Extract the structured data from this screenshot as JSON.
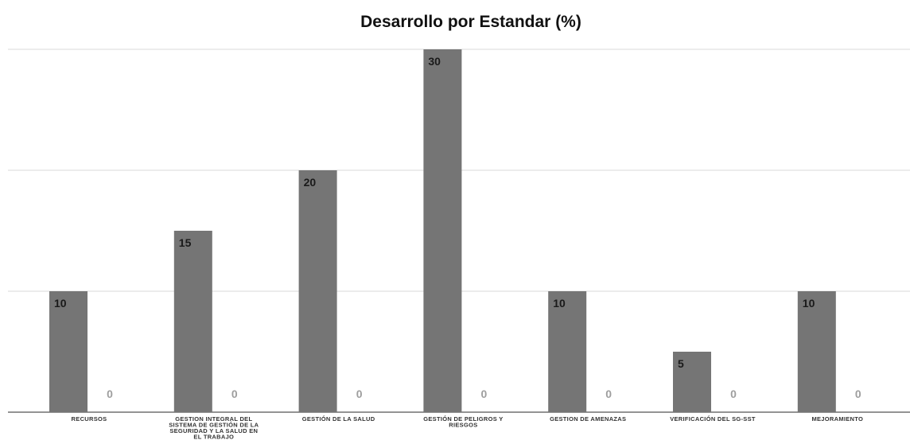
{
  "chart_data": {
    "type": "bar",
    "title": "Desarrollo por Estandar (%)",
    "xlabel": "",
    "ylabel": "",
    "ylim": [
      0,
      30
    ],
    "gridlines": [
      0,
      10,
      20,
      30
    ],
    "grid": true,
    "categories": [
      "RECURSOS",
      "GESTION INTEGRAL DEL SISTEMA DE GESTIÓN DE LA SEGURIDAD Y LA SALUD EN EL TRABAJO",
      "GESTIÓN DE LA SALUD",
      "GESTIÓN DE PELIGROS Y RIESGOS",
      "GESTION DE AMENAZAS",
      "VERIFICACIÓN DEL SG-SST",
      "MEJORAMIENTO"
    ],
    "category_lines": [
      [
        "RECURSOS"
      ],
      [
        "GESTION INTEGRAL DEL",
        "SISTEMA DE GESTIÓN DE LA",
        "SEGURIDAD Y LA SALUD EN",
        "EL TRABAJO"
      ],
      [
        "GESTIÓN DE LA SALUD"
      ],
      [
        "GESTIÓN DE PELIGROS Y",
        "RIESGOS"
      ],
      [
        "GESTION DE AMENAZAS"
      ],
      [
        "VERIFICACIÓN DEL SG-SST"
      ],
      [
        "MEJORAMIENTO"
      ]
    ],
    "series": [
      {
        "values": [
          10,
          15,
          20,
          30,
          10,
          5,
          10
        ],
        "color": "#757575",
        "label_color": "#1a1a1a"
      },
      {
        "values": [
          0,
          0,
          0,
          0,
          0,
          0,
          0
        ],
        "color": "#bdbdbd",
        "label_color": "#9e9e9e"
      }
    ]
  }
}
